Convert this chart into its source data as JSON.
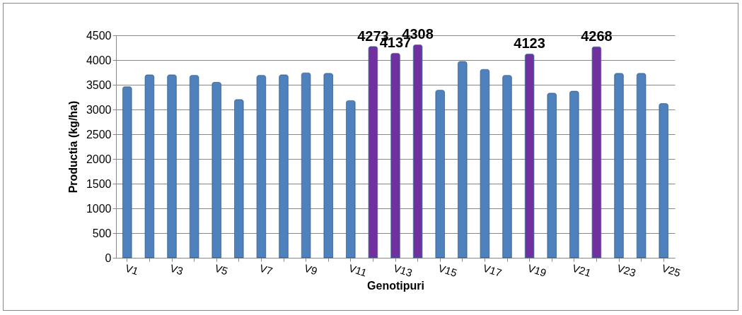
{
  "chart_data": {
    "type": "bar",
    "xlabel": "Genotipuri",
    "ylabel": "Productia (kg/ha)",
    "categories": [
      "V1",
      null,
      "V3",
      null,
      "V5",
      null,
      "V7",
      null,
      "V9",
      null,
      "V11",
      null,
      "V13",
      null,
      "V15",
      null,
      "V17",
      null,
      "V19",
      null,
      "V21",
      null,
      "V23",
      null,
      "V25"
    ],
    "values": [
      3460,
      3700,
      3700,
      3690,
      3550,
      3200,
      3690,
      3700,
      3740,
      3730,
      3180,
      4273,
      4137,
      4308,
      3390,
      3970,
      3810,
      3690,
      4123,
      3330,
      3370,
      4268,
      3730,
      3730,
      3120
    ],
    "colors": [
      "#4f81bd",
      "#4f81bd",
      "#4f81bd",
      "#4f81bd",
      "#4f81bd",
      "#4f81bd",
      "#4f81bd",
      "#4f81bd",
      "#4f81bd",
      "#4f81bd",
      "#4f81bd",
      "#7030a0",
      "#7030a0",
      "#7030a0",
      "#4f81bd",
      "#4f81bd",
      "#4f81bd",
      "#4f81bd",
      "#7030a0",
      "#4f81bd",
      "#4f81bd",
      "#7030a0",
      "#4f81bd",
      "#4f81bd",
      "#4f81bd"
    ],
    "value_labels": [
      null,
      null,
      null,
      null,
      null,
      null,
      null,
      null,
      null,
      null,
      null,
      "4273",
      "4137",
      "4308",
      null,
      null,
      null,
      null,
      "4123",
      null,
      null,
      "4268",
      null,
      null,
      null
    ],
    "ylim": [
      0,
      4500
    ],
    "yticks": [
      0,
      500,
      1000,
      1500,
      2000,
      2500,
      3000,
      3500,
      4000,
      4500
    ],
    "grid": "y"
  }
}
